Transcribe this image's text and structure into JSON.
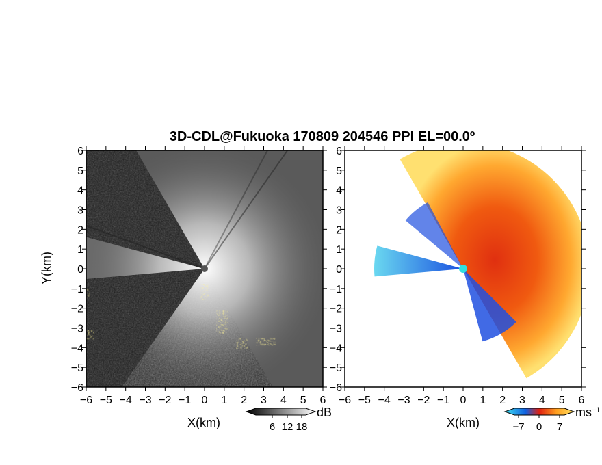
{
  "title": "3D-CDL@Fukuoka 170809 204546 PPI EL=00.0º",
  "chart_data": [
    {
      "type": "heatmap",
      "name": "backscatter",
      "xlabel": "X(km)",
      "ylabel": "Y(km)",
      "xlim": [
        -6,
        6
      ],
      "ylim": [
        -6,
        6
      ],
      "xticks": [
        "−6",
        "−5",
        "−4",
        "−3",
        "−2",
        "−1",
        "0",
        "1",
        "2",
        "3",
        "4",
        "5",
        "6"
      ],
      "yticks": [
        "6",
        "5",
        "4",
        "3",
        "2",
        "1",
        "0",
        "−1",
        "−2",
        "−3",
        "−4",
        "−5",
        "−6"
      ],
      "colorbar": {
        "unit": "dB",
        "ticks": [
          6,
          12,
          18
        ],
        "tick_labels": [
          "6",
          "12",
          "18"
        ],
        "colors": [
          "#000000",
          "#ffffff"
        ]
      },
      "flag_color": "#f0e000",
      "blank_sectors_deg": [
        [
          120,
          165
        ],
        [
          185,
          235
        ]
      ]
    },
    {
      "type": "heatmap",
      "name": "doppler_velocity",
      "xlabel": "X(km)",
      "ylabel": "",
      "xlim": [
        -6,
        6
      ],
      "ylim": [
        -6,
        6
      ],
      "xticks": [
        "−6",
        "−5",
        "−4",
        "−3",
        "−2",
        "−1",
        "0",
        "1",
        "2",
        "3",
        "4",
        "5",
        "6"
      ],
      "yticks": [
        "6",
        "5",
        "4",
        "3",
        "2",
        "1",
        "0",
        "−1",
        "−2",
        "−3",
        "−4",
        "−5",
        "−6"
      ],
      "colorbar": {
        "unit": "ms",
        "unit_exponent": "−1",
        "ticks": [
          -7,
          0,
          7
        ],
        "tick_labels": [
          "−7",
          "0",
          "7"
        ],
        "colors": [
          "#40e0f0",
          "#1060e0",
          "#e02010",
          "#ffa020",
          "#ffe060"
        ]
      },
      "blank_sectors_deg": [
        [
          120,
          165
        ],
        [
          185,
          235
        ]
      ]
    }
  ]
}
